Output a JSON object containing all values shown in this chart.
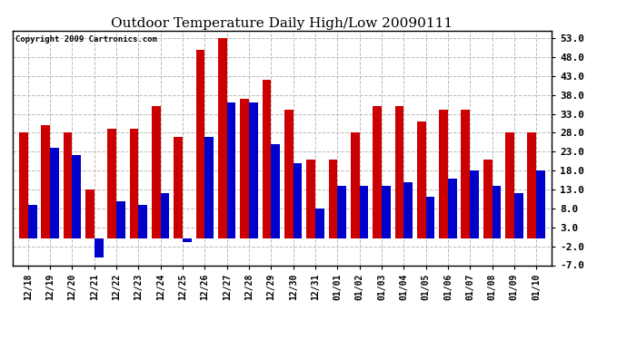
{
  "title": "Outdoor Temperature Daily High/Low 20090111",
  "copyright": "Copyright 2009 Cartronics.com",
  "categories": [
    "12/18",
    "12/19",
    "12/20",
    "12/21",
    "12/22",
    "12/23",
    "12/24",
    "12/25",
    "12/26",
    "12/27",
    "12/28",
    "12/29",
    "12/30",
    "12/31",
    "01/01",
    "01/02",
    "01/03",
    "01/04",
    "01/05",
    "01/06",
    "01/07",
    "01/08",
    "01/09",
    "01/10"
  ],
  "highs": [
    28.0,
    30.0,
    28.0,
    13.0,
    29.0,
    29.0,
    35.0,
    27.0,
    50.0,
    53.0,
    37.0,
    42.0,
    34.0,
    21.0,
    21.0,
    28.0,
    35.0,
    35.0,
    31.0,
    34.0,
    34.0,
    21.0,
    28.0,
    28.0
  ],
  "lows": [
    9.0,
    24.0,
    22.0,
    -5.0,
    10.0,
    9.0,
    12.0,
    -1.0,
    27.0,
    36.0,
    36.0,
    25.0,
    20.0,
    8.0,
    14.0,
    14.0,
    14.0,
    15.0,
    11.0,
    16.0,
    18.0,
    14.0,
    12.0,
    18.0
  ],
  "high_color": "#cc0000",
  "low_color": "#0000cc",
  "bg_color": "#ffffff",
  "grid_color": "#bbbbbb",
  "ylim": [
    -7.0,
    55.0
  ],
  "yticks": [
    -7.0,
    -2.0,
    3.0,
    8.0,
    13.0,
    18.0,
    23.0,
    28.0,
    33.0,
    38.0,
    43.0,
    48.0,
    53.0
  ],
  "bar_width": 0.4,
  "figw": 6.9,
  "figh": 3.75,
  "dpi": 100
}
